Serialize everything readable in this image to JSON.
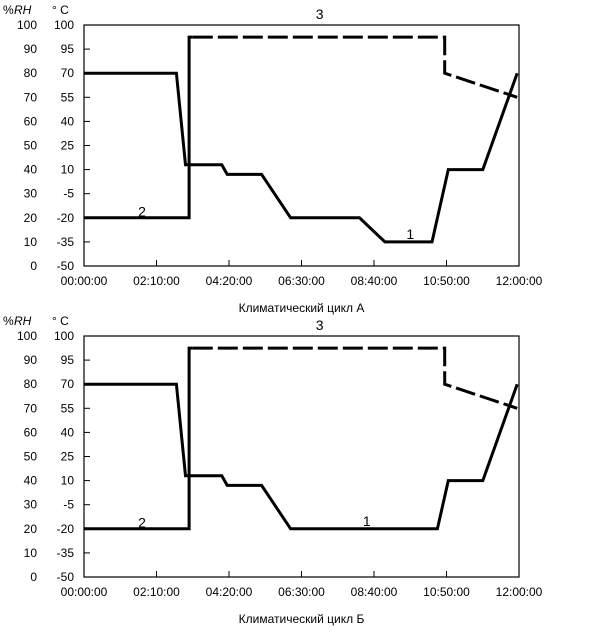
{
  "chart_data": [
    {
      "type": "line",
      "xlabel": "Климатический цикл А",
      "header_rh_pct": "%",
      "header_rh": "RH",
      "header_temp": "° C",
      "rh_ticks": [
        "100",
        "90",
        "80",
        "70",
        "60",
        "50",
        "40",
        "30",
        "20",
        "10",
        "0"
      ],
      "temp_ticks": [
        "100",
        "95",
        "70",
        "55",
        "40",
        "25",
        "10",
        "-5",
        "-20",
        "-35",
        "-50"
      ],
      "x_ticks": [
        "00:00:00",
        "02:10:00",
        "04:20:00",
        "06:30:00",
        "08:40:00",
        "10:50:00",
        "12:00:00"
      ],
      "xlim_hours": [
        0,
        12
      ],
      "ylim_rh": [
        0,
        100
      ],
      "ylim_temp": [
        -50,
        100
      ],
      "grid": false,
      "series": [
        {
          "name": "1",
          "axis": "temp",
          "style": "solid",
          "x_hours": [
            0,
            2.55,
            2.8,
            3.8,
            3.95,
            4.9,
            5.7,
            7.6,
            8.3,
            9.6,
            10.05,
            11.0,
            11.95
          ],
          "y": [
            70,
            70,
            13,
            13,
            7,
            7,
            -20,
            -20,
            -35,
            -35,
            10,
            10,
            70
          ]
        },
        {
          "name": "2",
          "axis": "rh",
          "style": "solid",
          "x_hours": [
            0,
            2.9,
            2.9,
            3.0
          ],
          "y": [
            20,
            20,
            95,
            95
          ]
        },
        {
          "name": "3",
          "axis": "rh",
          "style": "dashed",
          "x_hours": [
            3.0,
            9.95,
            9.95,
            11.95
          ],
          "y": [
            95,
            95,
            80,
            70
          ]
        }
      ],
      "annotations": [
        {
          "text": "1",
          "x_hours": 9.0,
          "y_temp": -30
        },
        {
          "text": "2",
          "x_hours": 1.6,
          "y_temp": -16
        },
        {
          "text": "3",
          "x_hours": 6.5,
          "y_temp": 107
        }
      ]
    },
    {
      "type": "line",
      "xlabel": "Климатический цикл Б",
      "header_rh_pct": "%",
      "header_rh": "RH",
      "header_temp": "° C",
      "rh_ticks": [
        "100",
        "90",
        "80",
        "70",
        "60",
        "50",
        "40",
        "30",
        "20",
        "10",
        "0"
      ],
      "temp_ticks": [
        "100",
        "95",
        "70",
        "55",
        "40",
        "25",
        "10",
        "-5",
        "-20",
        "-35",
        "-50"
      ],
      "x_ticks": [
        "00:00:00",
        "02:10:00",
        "04:20:00",
        "06:30:00",
        "08:40:00",
        "10:50:00",
        "12:00:00"
      ],
      "xlim_hours": [
        0,
        12
      ],
      "ylim_rh": [
        0,
        100
      ],
      "ylim_temp": [
        -50,
        100
      ],
      "grid": false,
      "series": [
        {
          "name": "1",
          "axis": "temp",
          "style": "solid",
          "x_hours": [
            0,
            2.55,
            2.8,
            3.8,
            3.95,
            4.9,
            5.7,
            9.75,
            10.05,
            11.0,
            11.95
          ],
          "y": [
            70,
            70,
            13,
            13,
            7,
            7,
            -20,
            -20,
            10,
            10,
            70
          ]
        },
        {
          "name": "2",
          "axis": "rh",
          "style": "solid",
          "x_hours": [
            0,
            2.9,
            2.9,
            3.0
          ],
          "y": [
            20,
            20,
            95,
            95
          ]
        },
        {
          "name": "3",
          "axis": "rh",
          "style": "dashed",
          "x_hours": [
            3.0,
            9.95,
            9.95,
            11.95
          ],
          "y": [
            95,
            95,
            80,
            70
          ]
        }
      ],
      "annotations": [
        {
          "text": "1",
          "x_hours": 7.8,
          "y_temp": -15
        },
        {
          "text": "2",
          "x_hours": 1.6,
          "y_temp": -16
        },
        {
          "text": "3",
          "x_hours": 6.5,
          "y_temp": 107
        }
      ]
    }
  ]
}
